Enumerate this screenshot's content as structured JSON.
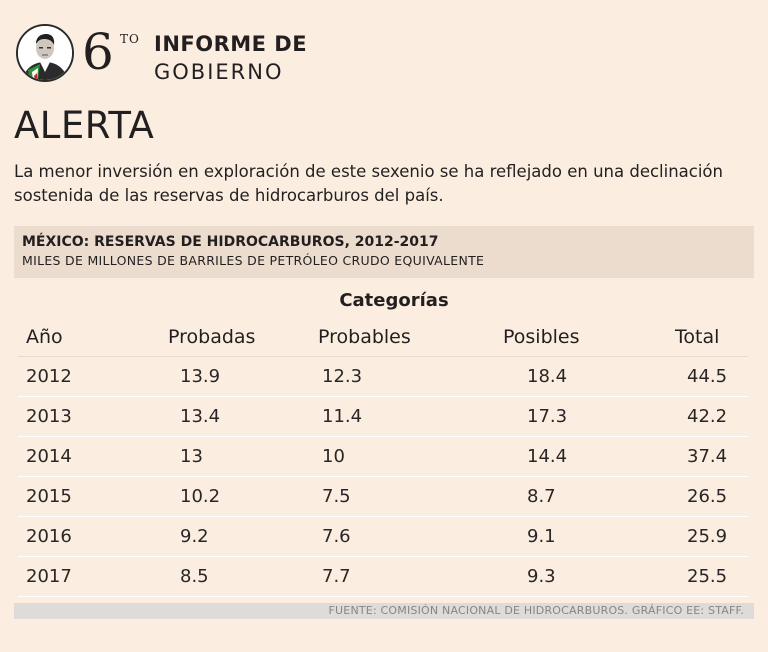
{
  "colors": {
    "background": "#fbeee0",
    "header_band": "#ecdccd",
    "source_band": "#dedbd8",
    "text": "#231f20"
  },
  "header": {
    "avatar_icon": "president-portrait-icon",
    "edition_number": "6",
    "edition_suffix": "TO",
    "title_line1": "INFORME DE",
    "title_line2": "GOBIERNO"
  },
  "headline": "ALERTA",
  "intro": "La menor inversión en exploración de este sexenio se ha reflejado en una declinación sostenida de las reservas de hidrocarburos del país.",
  "chart_data": {
    "type": "table",
    "title": "MÉXICO: RESERVAS DE HIDROCARBUROS, 2012-2017",
    "subtitle": "MILES DE MILLONES DE BARRILES DE PETRÓLEO CRUDO EQUIVALENTE",
    "group_label": "Categorías",
    "columns": [
      "Año",
      "Probadas",
      "Probables",
      "Posibles",
      "Total"
    ],
    "rows": [
      [
        "2012",
        "13.9",
        "12.3",
        "18.4",
        "44.5"
      ],
      [
        "2013",
        "13.4",
        "11.4",
        "17.3",
        "42.2"
      ],
      [
        "2014",
        "13",
        "10",
        "14.4",
        "37.4"
      ],
      [
        "2015",
        "10.2",
        "7.5",
        "8.7",
        "26.5"
      ],
      [
        "2016",
        "9.2",
        "7.6",
        "9.1",
        "25.9"
      ],
      [
        "2017",
        "8.5",
        "7.7",
        "9.3",
        "25.5"
      ]
    ],
    "source": "FUENTE: COMISIÓN NACIONAL DE HIDROCARBUROS. GRÁFICO EE: STAFF."
  }
}
